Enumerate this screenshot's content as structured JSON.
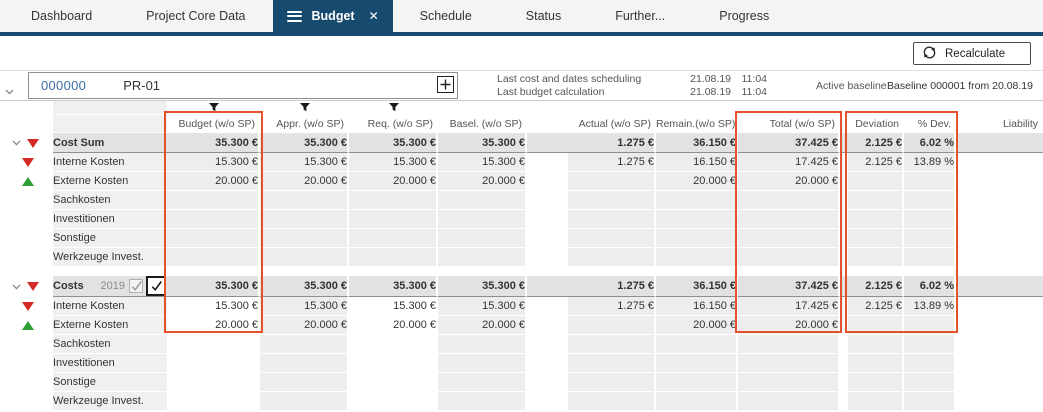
{
  "tabs": [
    {
      "label": "Dashboard",
      "active": false
    },
    {
      "label": "Project Core Data",
      "active": false
    },
    {
      "label": "Budget",
      "active": true,
      "closable": true
    },
    {
      "label": "Schedule",
      "active": false
    },
    {
      "label": "Status",
      "active": false
    },
    {
      "label": "Further...",
      "active": false
    },
    {
      "label": "Progress",
      "active": false
    }
  ],
  "toolbar": {
    "recalculate_label": "Recalculate"
  },
  "project": {
    "id": "000000",
    "code": "PR-01",
    "info": [
      {
        "label": "Last cost and dates scheduling",
        "date": "21.08.19",
        "time": "11:04"
      },
      {
        "label": "Last budget calculation",
        "date": "21.08.19",
        "time": "11:04"
      }
    ],
    "active_baseline_label": "Active baseline",
    "active_baseline_value": "Baseline 000001 from 20.08.19"
  },
  "table": {
    "columns": [
      "Budget (w/o SP)",
      "Appr. (w/o SP)",
      "Req. (w/o SP)",
      "Basel. (w/o SP)",
      "Actual (w/o SP)",
      "Remain.(w/o SP)",
      "Total (w/o SP)",
      "Deviation",
      "% Dev.",
      "Liability"
    ],
    "filter_columns": [
      0,
      1,
      2
    ],
    "highlighted_columns": [
      "Budget (w/o SP)",
      "Total (w/o SP)",
      "Deviation",
      "% Dev."
    ],
    "highlight_color": "#e5512d",
    "groups": [
      {
        "header": {
          "label": "Cost Sum",
          "trend": "down",
          "values": [
            "35.300 €",
            "35.300 €",
            "35.300 €",
            "35.300 €",
            "1.275 €",
            "36.150 €",
            "37.425 €",
            "2.125 €",
            "6.02 %",
            ""
          ]
        },
        "rows": [
          {
            "label": "Interne Kosten",
            "trend": "down",
            "values": [
              "15.300 €",
              "15.300 €",
              "15.300 €",
              "15.300 €",
              "1.275 €",
              "16.150 €",
              "17.425 €",
              "2.125 €",
              "13.89 %",
              ""
            ]
          },
          {
            "label": "Externe Kosten",
            "trend": "up",
            "values": [
              "20.000 €",
              "20.000 €",
              "20.000 €",
              "20.000 €",
              "",
              "20.000 €",
              "20.000 €",
              "",
              "",
              ""
            ]
          },
          {
            "label": "Sachkosten",
            "trend": "",
            "values": [
              "",
              "",
              "",
              "",
              "",
              "",
              "",
              "",
              "",
              ""
            ]
          },
          {
            "label": "Investitionen",
            "trend": "",
            "values": [
              "",
              "",
              "",
              "",
              "",
              "",
              "",
              "",
              "",
              ""
            ]
          },
          {
            "label": "Sonstige",
            "trend": "",
            "values": [
              "",
              "",
              "",
              "",
              "",
              "",
              "",
              "",
              "",
              ""
            ]
          },
          {
            "label": "Werkzeuge Invest.",
            "trend": "",
            "values": [
              "",
              "",
              "",
              "",
              "",
              "",
              "",
              "",
              "",
              ""
            ]
          }
        ]
      },
      {
        "header": {
          "label": "Costs",
          "year": "2019",
          "trend": "down",
          "checkboxes": {
            "disabled_checked": true,
            "active_checked": true
          },
          "values": [
            "35.300 €",
            "35.300 €",
            "35.300 €",
            "35.300 €",
            "1.275 €",
            "36.150 €",
            "37.425 €",
            "2.125 €",
            "6.02 %",
            ""
          ]
        },
        "rows": [
          {
            "label": "Interne Kosten",
            "trend": "down",
            "values": [
              "15.300 €",
              "15.300 €",
              "15.300 €",
              "15.300 €",
              "1.275 €",
              "16.150 €",
              "17.425 €",
              "2.125 €",
              "13.89 %",
              ""
            ]
          },
          {
            "label": "Externe Kosten",
            "trend": "up",
            "values": [
              "20.000 €",
              "20.000 €",
              "20.000 €",
              "20.000 €",
              "",
              "20.000 €",
              "20.000 €",
              "",
              "",
              ""
            ]
          },
          {
            "label": "Sachkosten",
            "trend": "",
            "values": [
              "",
              "",
              "",
              "",
              "",
              "",
              "",
              "",
              "",
              ""
            ]
          },
          {
            "label": "Investitionen",
            "trend": "",
            "values": [
              "",
              "",
              "",
              "",
              "",
              "",
              "",
              "",
              "",
              ""
            ]
          },
          {
            "label": "Sonstige",
            "trend": "",
            "values": [
              "",
              "",
              "",
              "",
              "",
              "",
              "",
              "",
              "",
              ""
            ]
          },
          {
            "label": "Werkzeuge Invest.",
            "trend": "",
            "values": [
              "",
              "",
              "",
              "",
              "",
              "",
              "",
              "",
              "",
              ""
            ]
          }
        ]
      }
    ]
  }
}
